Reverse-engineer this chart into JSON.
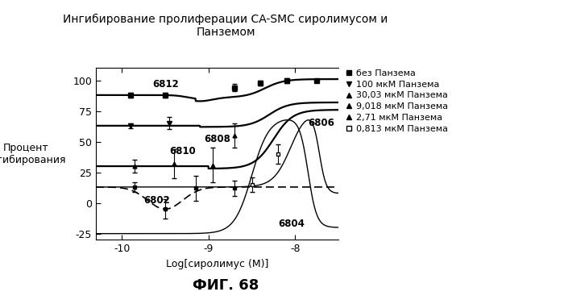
{
  "title": "Ингибирование пролиферации CA-SMC сиролимусом и\nПанземом",
  "xlabel": "Log[сиролимус (М)]",
  "ylabel": "Процент\nингибирования",
  "caption": "ФИГ. 68",
  "xlim": [
    -10.3,
    -7.5
  ],
  "ylim": [
    -30,
    110
  ],
  "yticks": [
    -25,
    0,
    25,
    50,
    75,
    100
  ],
  "xticks": [
    -10,
    -9,
    -8
  ],
  "legend_entries": [
    "без Панзема",
    "100 мкМ Панзема",
    "30,03 мкМ Панзема",
    "9,018 мкМ Панзема",
    "2,71 мкМ Панзема",
    "0,813 мкМ Панзема"
  ],
  "background_color": "#ffffff",
  "curve_labels": {
    "6812": [
      -9.65,
      97
    ],
    "6810": [
      -9.45,
      42
    ],
    "6808": [
      -9.05,
      52
    ],
    "6806": [
      -7.85,
      65
    ],
    "6802": [
      -9.75,
      2
    ],
    "6804": [
      -8.2,
      -17
    ]
  }
}
